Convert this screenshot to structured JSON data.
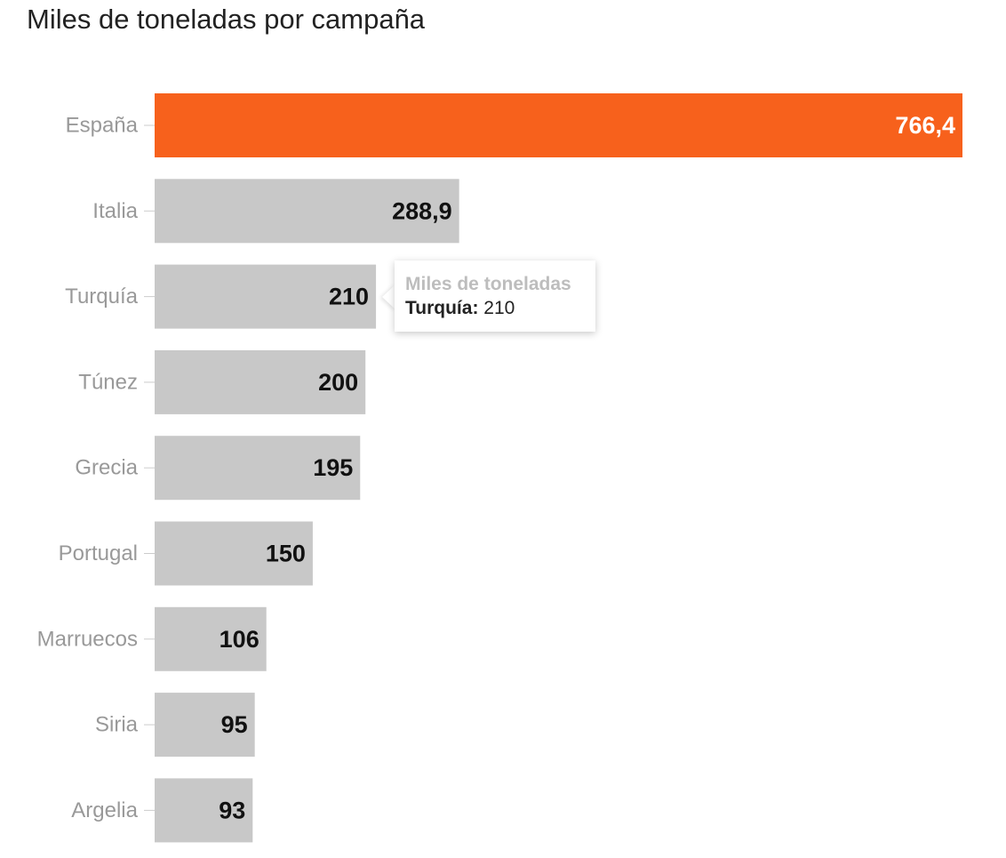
{
  "chart_data": {
    "type": "bar",
    "orientation": "horizontal",
    "title": "Miles de toneladas por campaña",
    "categories": [
      "España",
      "Italia",
      "Turquía",
      "Túnez",
      "Grecia",
      "Portugal",
      "Marruecos",
      "Siria",
      "Argelia"
    ],
    "values": [
      766.4,
      288.9,
      210,
      200,
      195,
      150,
      106,
      95,
      93
    ],
    "value_labels": [
      "766,4",
      "288,9",
      "210",
      "200",
      "195",
      "150",
      "106",
      "95",
      "93"
    ],
    "xlim": [
      0,
      766.4
    ],
    "grid": false,
    "highlight_index": 0,
    "colors": {
      "highlight": "#f7611c",
      "default": "#c8c8c8",
      "highlight_label": "#ffffff",
      "default_label": "#111111"
    }
  },
  "tooltip": {
    "title": "Miles de toneladas",
    "category": "Turquía:",
    "value": "210"
  }
}
